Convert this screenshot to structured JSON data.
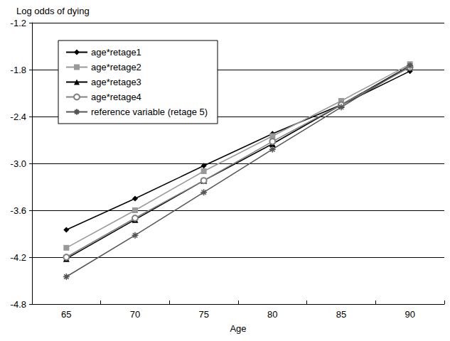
{
  "chart_data": {
    "type": "line",
    "y_label": "Log odds of dying",
    "x_label": "Age",
    "categories": [
      "65",
      "70",
      "75",
      "80",
      "85",
      "90"
    ],
    "series": [
      {
        "name": "age*retage1",
        "color": "#000000",
        "marker": "diamond",
        "values": [
          -3.85,
          -3.45,
          -3.03,
          -2.62,
          -2.25,
          -1.82
        ]
      },
      {
        "name": "age*retage2",
        "color": "#999999",
        "marker": "square",
        "values": [
          -4.08,
          -3.6,
          -3.1,
          -2.65,
          -2.2,
          -1.73
        ]
      },
      {
        "name": "age*retage3",
        "color": "#000000",
        "marker": "triangle",
        "values": [
          -4.22,
          -3.72,
          -3.22,
          -2.75,
          -2.25,
          -1.75
        ]
      },
      {
        "name": "age*retage4",
        "color": "#808080",
        "marker": "empty_circle",
        "values": [
          -4.2,
          -3.7,
          -3.22,
          -2.72,
          -2.25,
          -1.77
        ]
      },
      {
        "name": "reference variable (retage 5)",
        "color": "#555555",
        "marker": "asterisk",
        "values": [
          -4.45,
          -3.92,
          -3.37,
          -2.82,
          -2.28,
          -1.75
        ]
      }
    ],
    "ylim": [
      -4.8,
      -1.2
    ],
    "yticks": [
      -4.8,
      -4.2,
      -3.6,
      {
        "value": -3,
        "label": "-3.0"
      },
      -2.4,
      -1.8,
      -1.2
    ],
    "grid": true,
    "legend": "top-left"
  }
}
